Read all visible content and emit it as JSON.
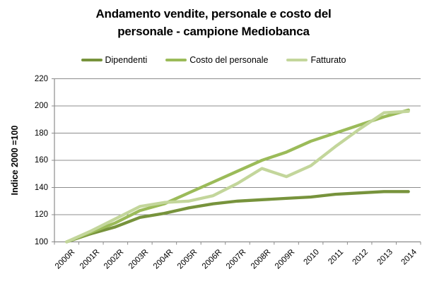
{
  "chart_data": {
    "type": "line",
    "title": "Andamento vendite, personale e costo del personale - campione Mediobanca",
    "title_lines": [
      "Andamento vendite, personale e costo del",
      "personale - campione Mediobanca"
    ],
    "y_axis": {
      "title": "Indice 2000 =100",
      "min": 100,
      "max": 220,
      "step": 20,
      "ticks": [
        100,
        120,
        140,
        160,
        180,
        200,
        220
      ]
    },
    "x_axis": {
      "categories": [
        "2000R",
        "2001R",
        "2002R",
        "2003R",
        "2004R",
        "2005R",
        "2006R",
        "2007R",
        "2008R",
        "2009R",
        "2010",
        "2011",
        "2012",
        "2013",
        "2014"
      ]
    },
    "legend": {
      "position": "top",
      "entries": [
        "Dipendenti",
        "Costo del personale",
        "Fatturato"
      ]
    },
    "grid": true,
    "axis_color": "#8c8c8c",
    "background": "#ffffff",
    "series": [
      {
        "name": "Dipendenti",
        "color": "#77933C",
        "values": [
          100,
          106,
          111,
          118,
          121,
          125,
          128,
          130,
          131,
          132,
          133,
          135,
          136,
          137,
          137
        ]
      },
      {
        "name": "Costo del personale",
        "color": "#9BBB59",
        "values": [
          100,
          107,
          114,
          123,
          128,
          136,
          144,
          152,
          160,
          166,
          174,
          180,
          186,
          192,
          197
        ]
      },
      {
        "name": "Fatturato",
        "color": "#C3D69B",
        "values": [
          100,
          108,
          117,
          126,
          129,
          130,
          134,
          143,
          154,
          148,
          156,
          170,
          183,
          195,
          196
        ]
      }
    ]
  }
}
